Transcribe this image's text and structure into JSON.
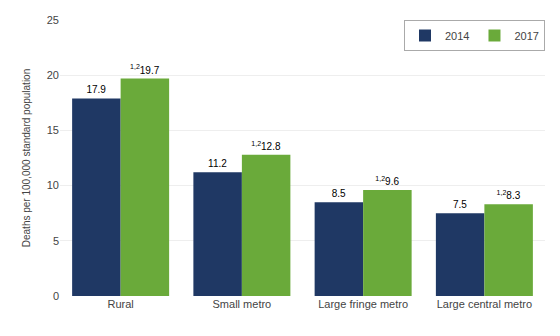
{
  "chart_data": {
    "type": "bar",
    "categories": [
      "Rural",
      "Small metro",
      "Large fringe metro",
      "Large central metro"
    ],
    "series": [
      {
        "name": "2014",
        "color": "#1f3864",
        "values": [
          17.9,
          11.2,
          8.5,
          7.5
        ]
      },
      {
        "name": "2017",
        "color": "#6aaa3a",
        "values": [
          19.7,
          12.8,
          9.6,
          8.3
        ],
        "annotations": [
          "1,2",
          "1,2",
          "1,2",
          "1,2"
        ]
      }
    ],
    "ylabel": "Deaths per 100,000 standard population",
    "ylim": [
      0,
      25
    ],
    "yticks": [
      0,
      5,
      10,
      15,
      20,
      25
    ],
    "grid": true,
    "legend": "upper right",
    "data_labels": true
  }
}
